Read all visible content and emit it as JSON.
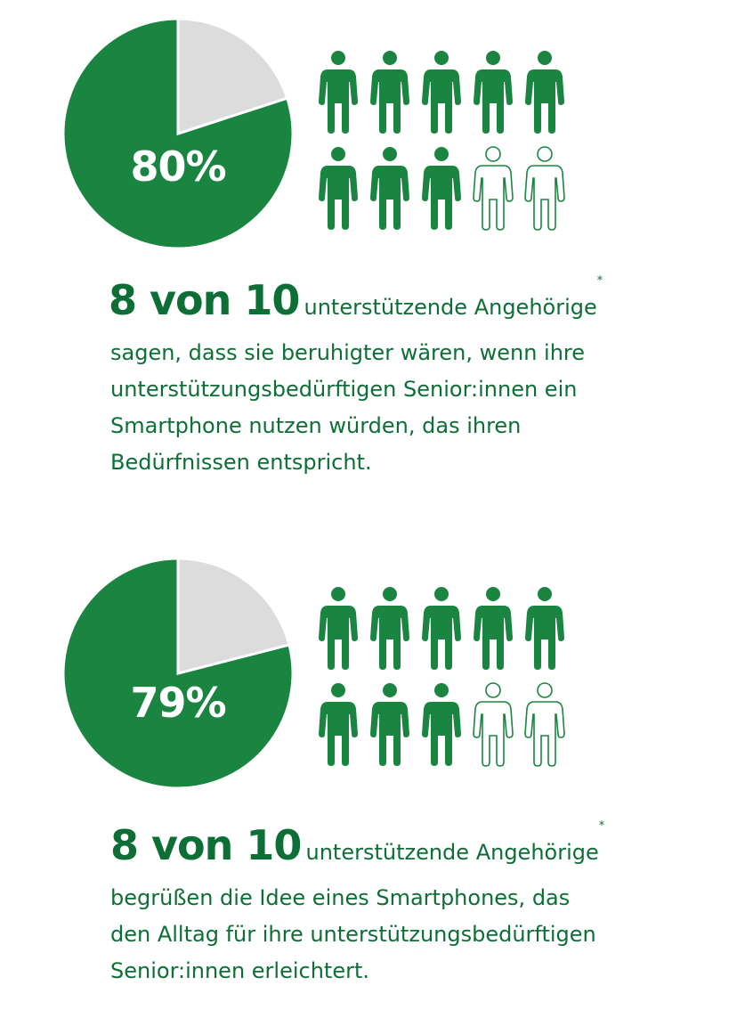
{
  "chart_data": [
    {
      "type": "pie",
      "label": "80%",
      "values": [
        80,
        20
      ],
      "colors": [
        "#198540",
        "#dcdcdc"
      ],
      "icons_filled": 8,
      "icons_total": 10,
      "headline_big": "8 von 10",
      "headline_small": "unterstützende Angehörige",
      "footnote_mark": "*",
      "text_lines": [
        "sagen, dass sie beruhigter wären, wenn ihre",
        "unterstützungsbedürftigen Senior:innen ein",
        "Smartphone nutzen würden, das ihren",
        "Bedürfnissen entspricht."
      ]
    },
    {
      "type": "pie",
      "label": "79%",
      "values": [
        79,
        21
      ],
      "colors": [
        "#198540",
        "#dcdcdc"
      ],
      "icons_filled": 8,
      "icons_total": 10,
      "headline_big": "8 von 10",
      "headline_small": "unterstützende Angehörige",
      "footnote_mark": "*",
      "text_lines": [
        "begrüßen die Idee eines Smartphones, das",
        "den Alltag für ihre unterstützungsbedürftigen",
        "Senior:innen erleichtert."
      ]
    }
  ],
  "colors": {
    "accent": "#198540",
    "text": "#0d6f36",
    "neutral": "#dcdcdc"
  },
  "icon": "person-icon"
}
